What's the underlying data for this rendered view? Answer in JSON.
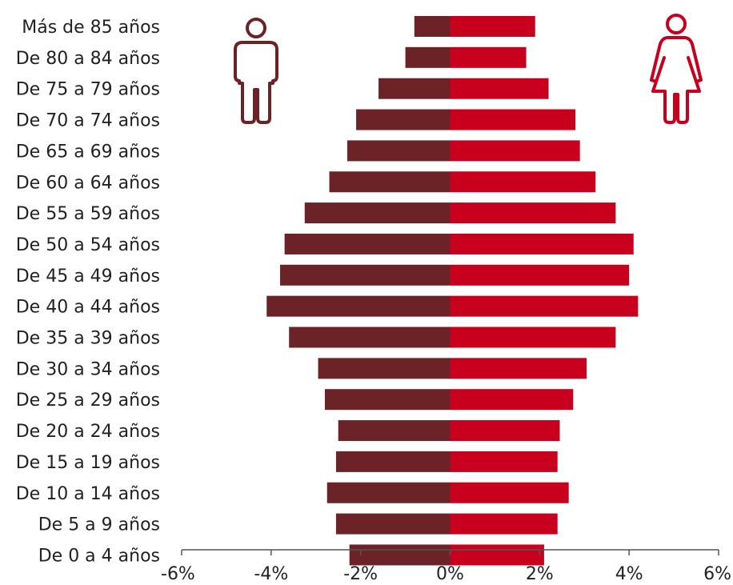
{
  "chart_data": {
    "type": "bar",
    "orientation": "horizontal",
    "layout": "population-pyramid",
    "categories": [
      "Más de 85 años",
      "De 80 a 84 años",
      "De 75 a 79 años",
      "De 70 a 74 años",
      "De 65 a 69 años",
      "De 60 a 64 años",
      "De 55 a 59 años",
      "De 50 a 54 años",
      "De 45 a 49 años",
      "De 40 a 44 años",
      "De 35 a 39 años",
      "De 30 a 34 años",
      "De 25 a 29 años",
      "De 20 a 24 años",
      "De 15 a 19 años",
      "De 10 a 14 años",
      "De 5 a 9 años",
      "De 0 a 4 años"
    ],
    "series": [
      {
        "icon": "man-icon",
        "color": "#6b2327",
        "values": [
          -0.8,
          -1.0,
          -1.6,
          -2.1,
          -2.3,
          -2.7,
          -3.25,
          -3.7,
          -3.8,
          -4.1,
          -3.6,
          -2.95,
          -2.8,
          -2.5,
          -2.55,
          -2.75,
          -2.55,
          -2.25
        ]
      },
      {
        "icon": "woman-icon",
        "color": "#c8001e",
        "values": [
          1.9,
          1.7,
          2.2,
          2.8,
          2.9,
          3.25,
          3.7,
          4.1,
          4.0,
          4.2,
          3.7,
          3.05,
          2.75,
          2.45,
          2.4,
          2.65,
          2.4,
          2.1
        ]
      }
    ],
    "x_ticks": [
      "-6%",
      "-4%",
      "-2%",
      "0%",
      "2%",
      "4%",
      "6%"
    ],
    "xlim": [
      -6,
      6
    ],
    "title": "",
    "xlabel": "",
    "ylabel": "",
    "grid": false,
    "legend": "icons"
  }
}
